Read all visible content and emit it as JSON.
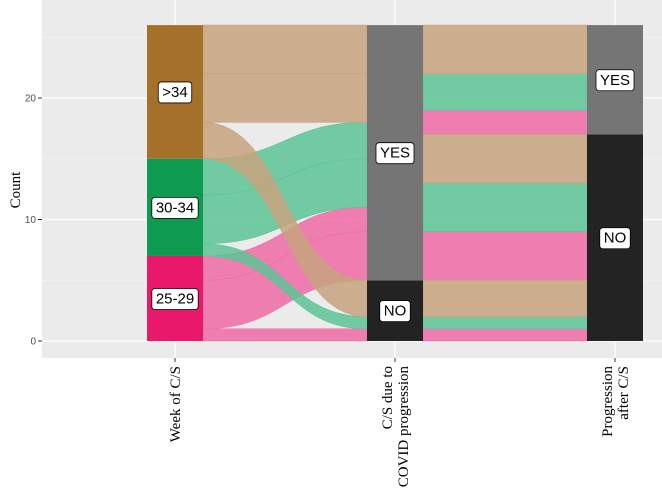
{
  "chart_data": {
    "type": "alluvial",
    "ylabel": "Count",
    "ylim": [
      0,
      26
    ],
    "yticks": [
      0,
      10,
      20
    ],
    "grid": true,
    "axes": [
      "Week of C/S",
      "C/S due to COVID progression",
      "Progression after C/S"
    ],
    "axis_label_lines": [
      [
        "Week of C/S"
      ],
      [
        "C/S due to",
        "COVID progression"
      ],
      [
        "Progression",
        "after C/S"
      ]
    ],
    "strata": [
      [
        {
          "label": "25-29",
          "count": 7,
          "color": "#e8196a"
        },
        {
          "label": "30-34",
          "count": 8,
          "color": "#0e9a50"
        },
        {
          "label": ">34",
          "count": 11,
          "color": "#a5702a"
        }
      ],
      [
        {
          "label": "NO",
          "count": 5,
          "color": "#232323"
        },
        {
          "label": "YES",
          "count": 21,
          "color": "#757575"
        }
      ],
      [
        {
          "label": "NO",
          "count": 17,
          "color": "#232323"
        },
        {
          "label": "YES",
          "count": 9,
          "color": "#757575"
        }
      ]
    ],
    "flows": [
      {
        "group": "25-29",
        "path": [
          "NO",
          "NO"
        ],
        "count": 1
      },
      {
        "group": "25-29",
        "path": [
          "YES",
          "NO"
        ],
        "count": 4
      },
      {
        "group": "25-29",
        "path": [
          "YES",
          "NO"
        ],
        "count": 0
      },
      {
        "group": "25-29",
        "path": [
          "YES",
          "YES"
        ],
        "count": 2
      },
      {
        "group": "30-34",
        "path": [
          "NO",
          "NO"
        ],
        "count": 1
      },
      {
        "group": "30-34",
        "path": [
          "YES",
          "NO"
        ],
        "count": 4
      },
      {
        "group": "30-34",
        "path": [
          "YES",
          "YES"
        ],
        "count": 3
      },
      {
        "group": ">34",
        "path": [
          "NO",
          "NO"
        ],
        "count": 3
      },
      {
        "group": ">34",
        "path": [
          "YES",
          "NO"
        ],
        "count": 4
      },
      {
        "group": ">34",
        "path": [
          "YES",
          "YES"
        ],
        "count": 4
      }
    ],
    "group_colors": {
      "25-29": "#f06ba6",
      "30-34": "#5cc495",
      ">34": "#c7a37e"
    }
  }
}
